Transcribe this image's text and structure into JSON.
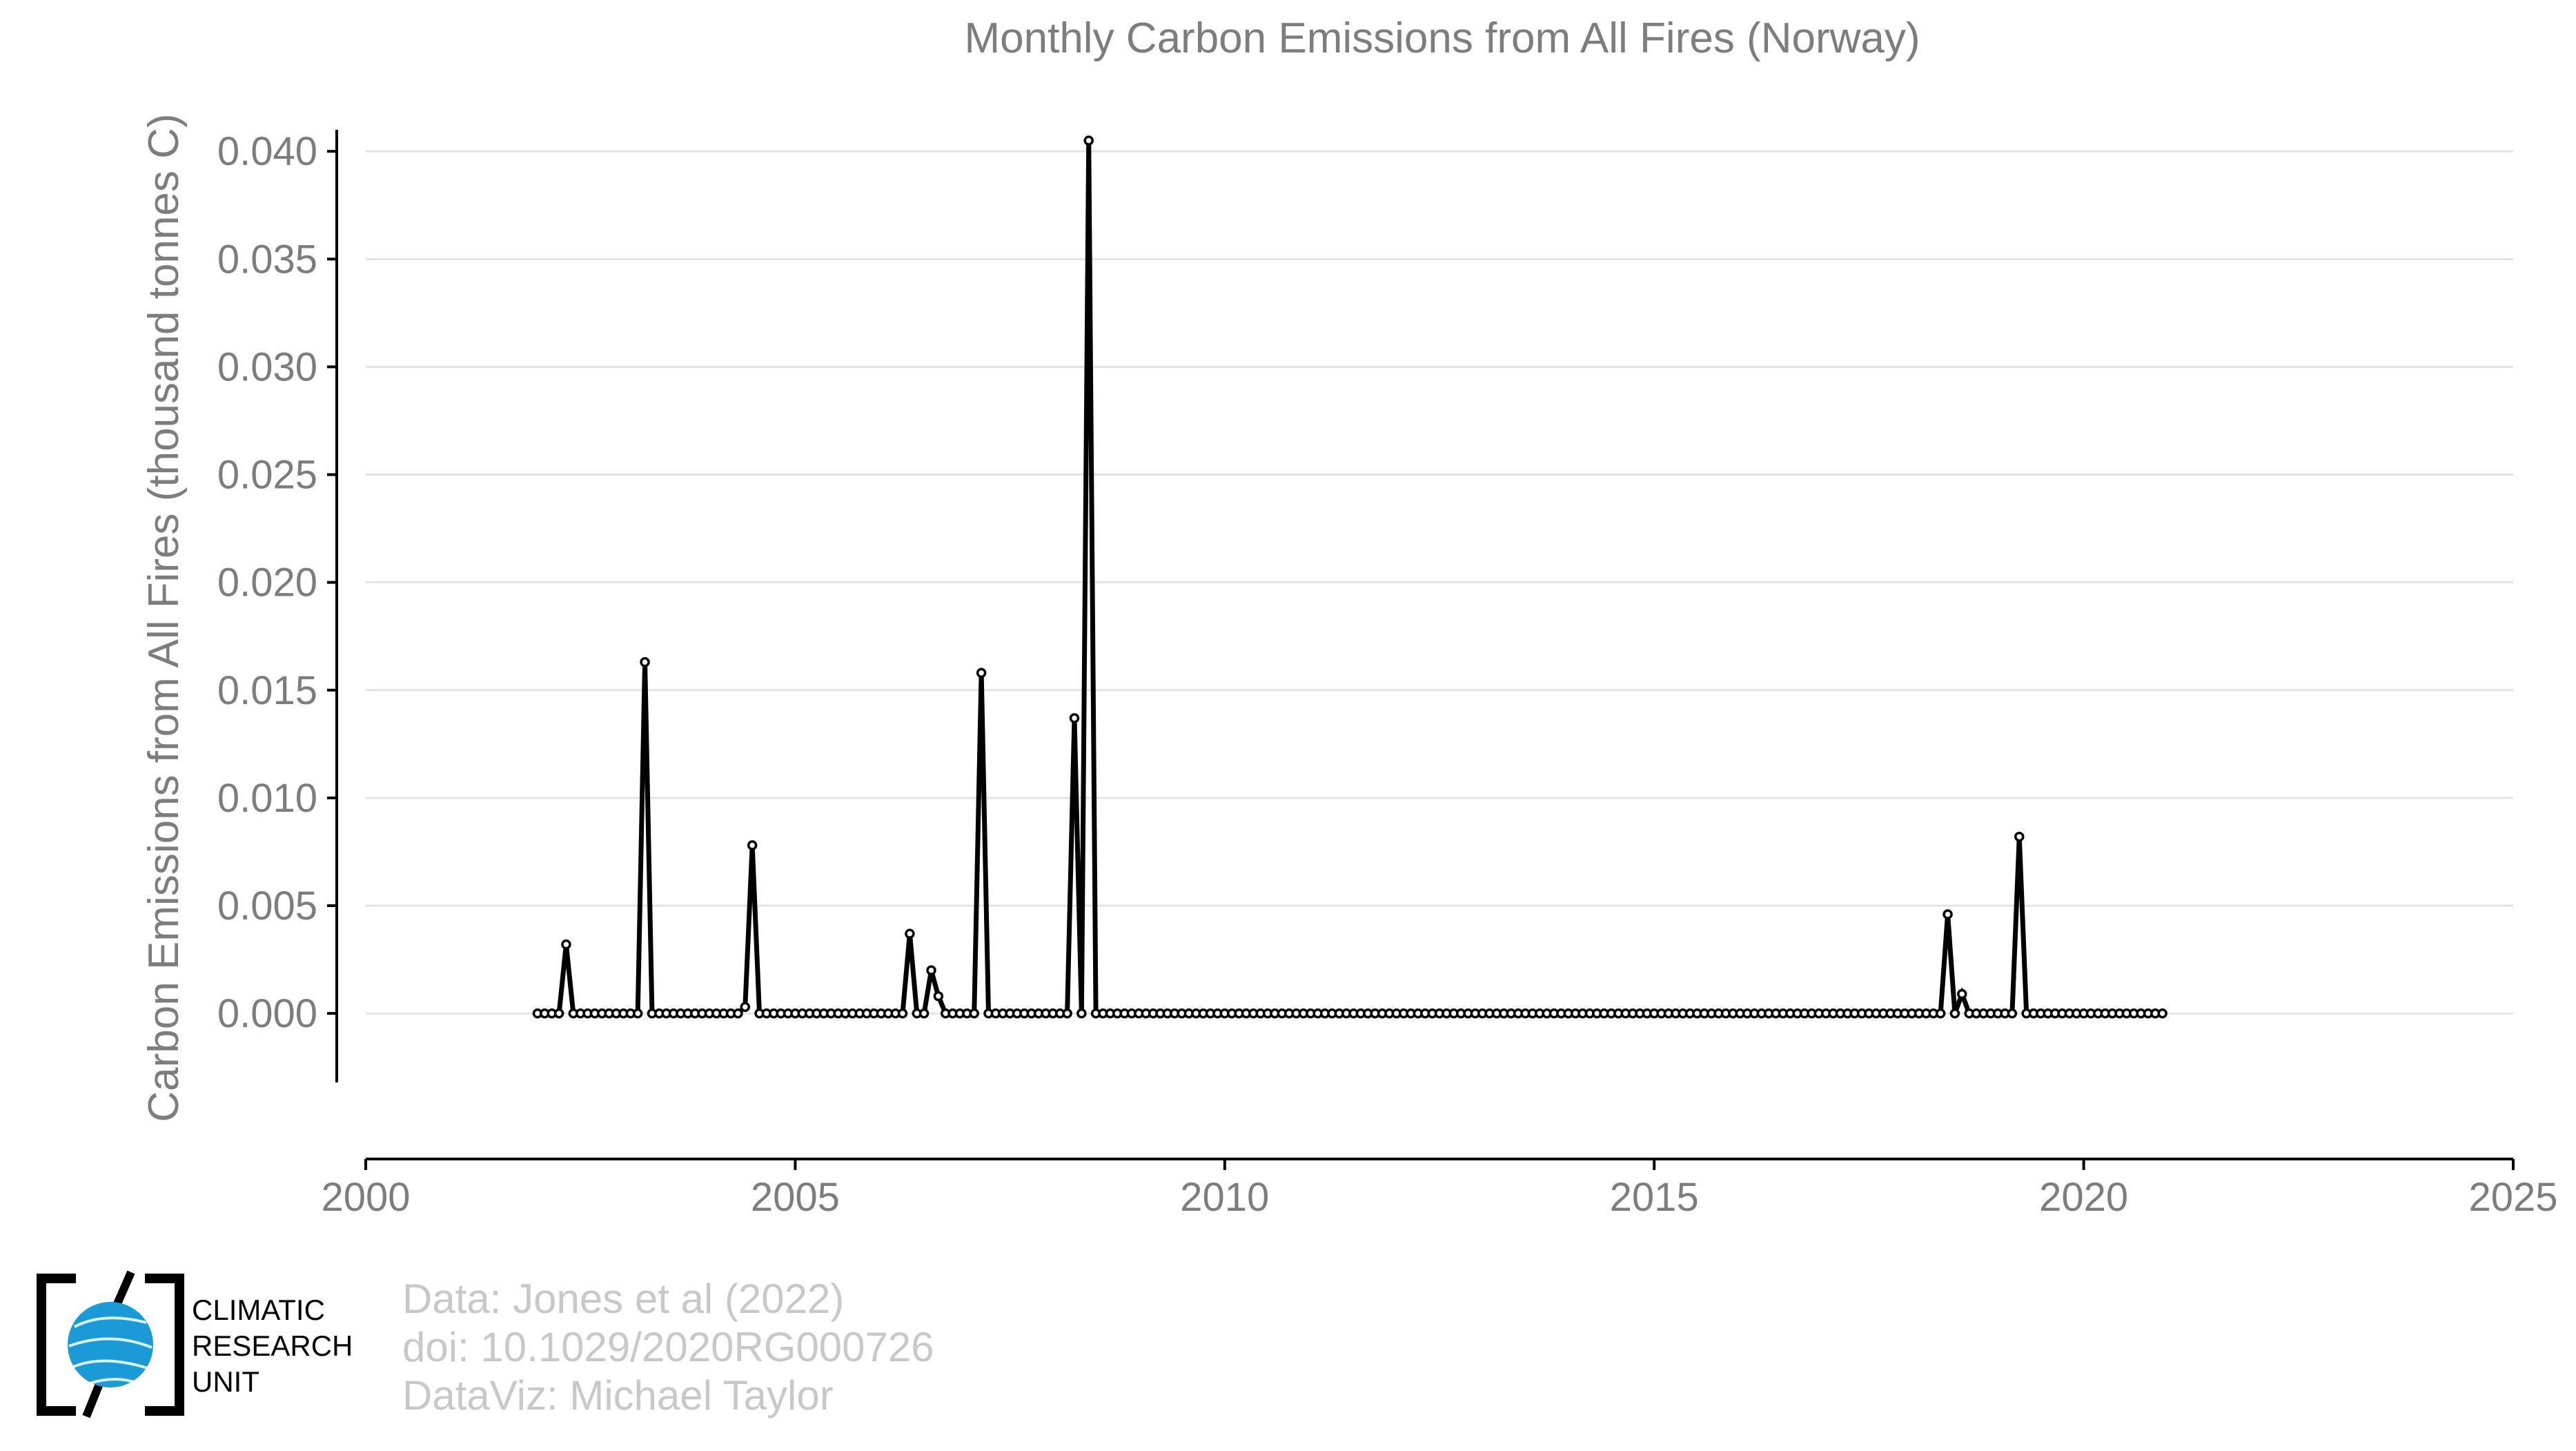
{
  "chart_data": {
    "type": "line",
    "title": "Monthly Carbon Emissions from All Fires (Norway)",
    "ylabel": "Carbon Emissions from All Fires (thousand tonnes C)",
    "xlabel": "",
    "xlim": [
      2000,
      2025
    ],
    "ylim": [
      -0.0032,
      0.041
    ],
    "x_ticks": [
      "2000",
      "2005",
      "2010",
      "2015",
      "2020",
      "2025"
    ],
    "y_ticks": [
      "0.000",
      "0.005",
      "0.010",
      "0.015",
      "0.020",
      "0.025",
      "0.030",
      "0.035",
      "0.040"
    ],
    "grid": "horizontal",
    "x_start": "2002-01",
    "x_end": "2020-12",
    "frequency": "monthly",
    "spikes": [
      {
        "date": "2002-05",
        "value": 0.0032
      },
      {
        "date": "2003-04",
        "value": 0.0163
      },
      {
        "date": "2004-06",
        "value": 0.0003
      },
      {
        "date": "2004-07",
        "value": 0.0078
      },
      {
        "date": "2006-05",
        "value": 0.0037
      },
      {
        "date": "2006-08",
        "value": 0.002
      },
      {
        "date": "2006-09",
        "value": 0.0008
      },
      {
        "date": "2007-03",
        "value": 0.0158
      },
      {
        "date": "2008-04",
        "value": 0.0137
      },
      {
        "date": "2008-06",
        "value": 0.0405
      },
      {
        "date": "2018-06",
        "value": 0.0046
      },
      {
        "date": "2018-08",
        "value": 0.0009
      },
      {
        "date": "2019-04",
        "value": 0.0082
      }
    ]
  },
  "credits": {
    "line1": "Data: Jones et al (2022)",
    "line2": "doi: 10.1029/2020RG000726",
    "line3": "DataViz: Michael Taylor"
  },
  "logo": {
    "line1": "CLIMATIC",
    "line2": "RESEARCH",
    "line3": "UNIT",
    "globe_color": "#1a9bd7"
  }
}
